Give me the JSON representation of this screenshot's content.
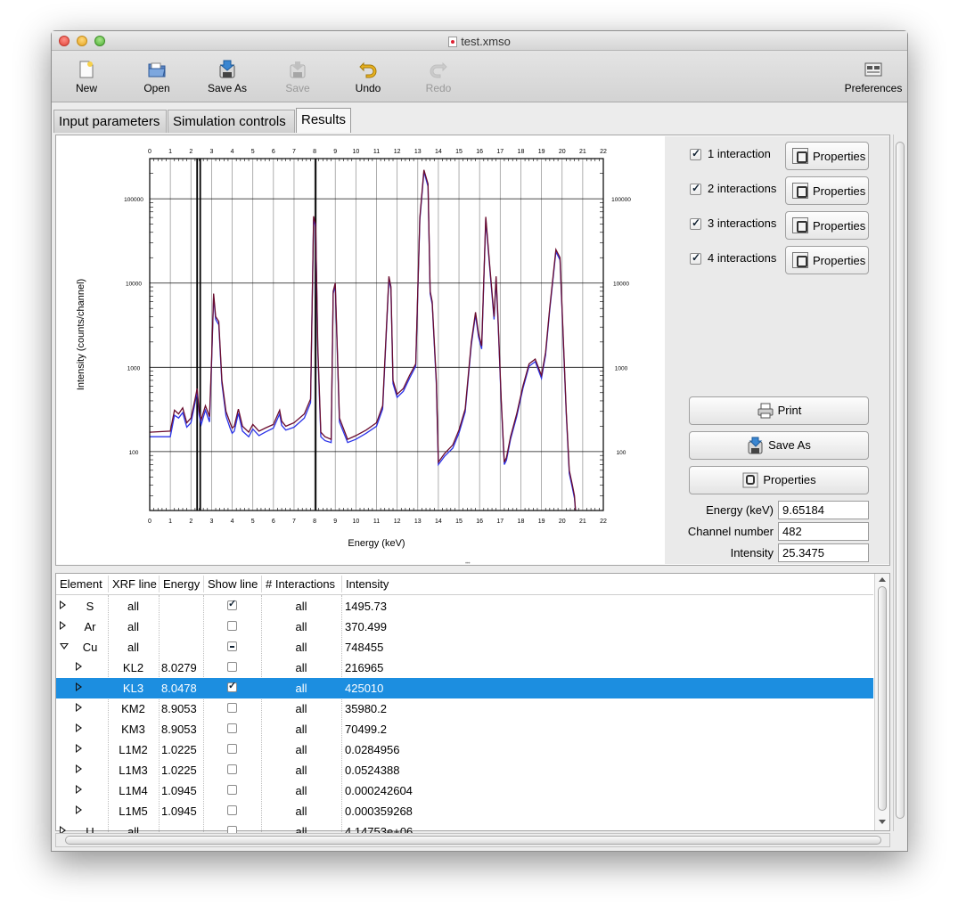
{
  "window": {
    "title": "test.xmso"
  },
  "toolbar": {
    "new": "New",
    "open": "Open",
    "save_as": "Save As",
    "save": "Save",
    "undo": "Undo",
    "redo": "Redo",
    "preferences": "Preferences"
  },
  "tabs": [
    "Input parameters",
    "Simulation controls",
    "Results"
  ],
  "chart_data": {
    "type": "line",
    "xlabel": "Energy (keV)",
    "ylabel": "Intensity (counts/channel)",
    "xlim": [
      0,
      22
    ],
    "ylim": [
      20,
      300000
    ],
    "yscale": "log",
    "x_ticks": [
      0,
      1,
      2,
      3,
      4,
      5,
      6,
      7,
      8,
      9,
      10,
      11,
      12,
      13,
      14,
      15,
      16,
      17,
      18,
      19,
      20,
      21,
      22
    ],
    "y_ticks": [
      100,
      1000,
      10000,
      100000
    ],
    "grid": true,
    "series": [
      {
        "color": "#6a0c2e",
        "x": [
          0,
          1,
          1.2,
          1.4,
          1.6,
          1.8,
          2.0,
          2.2,
          2.3,
          2.4,
          2.5,
          2.7,
          2.9,
          3.0,
          3.1,
          3.2,
          3.35,
          3.5,
          3.7,
          3.9,
          4.0,
          4.1,
          4.3,
          4.5,
          4.8,
          5.0,
          5.3,
          5.6,
          6.0,
          6.3,
          6.4,
          6.6,
          7.0,
          7.5,
          7.8,
          7.95,
          8.05,
          8.15,
          8.3,
          8.5,
          8.8,
          8.9,
          9.0,
          9.2,
          9.6,
          10.0,
          10.5,
          11.0,
          11.3,
          11.6,
          11.7,
          11.8,
          12.0,
          12.3,
          12.6,
          12.9,
          13.1,
          13.3,
          13.5,
          13.6,
          13.7,
          13.9,
          14.0,
          14.3,
          14.7,
          15.0,
          15.3,
          15.6,
          15.8,
          15.95,
          16.1,
          16.3,
          16.5,
          16.7,
          16.8,
          16.9,
          17.05,
          17.2,
          17.3,
          17.5,
          17.8,
          18.1,
          18.4,
          18.7,
          19.0,
          19.2,
          19.4,
          19.7,
          19.9,
          20.05,
          20.2,
          20.35,
          20.5,
          20.6,
          20.65
        ],
        "y": [
          170,
          175,
          310,
          280,
          330,
          220,
          250,
          420,
          560,
          300,
          240,
          350,
          260,
          1200,
          7500,
          4000,
          3500,
          700,
          300,
          220,
          190,
          200,
          320,
          200,
          170,
          210,
          175,
          190,
          210,
          310,
          230,
          200,
          220,
          280,
          420,
          62000,
          50000,
          1800,
          170,
          150,
          140,
          8000,
          10000,
          250,
          140,
          155,
          180,
          220,
          350,
          12000,
          9000,
          700,
          480,
          560,
          800,
          1100,
          60000,
          220000,
          150000,
          8000,
          6000,
          700,
          75,
          95,
          120,
          180,
          320,
          2000,
          4500,
          2500,
          1800,
          61000,
          15000,
          4000,
          12000,
          3500,
          400,
          75,
          85,
          150,
          280,
          600,
          1100,
          1250,
          800,
          1500,
          5000,
          25000,
          20000,
          2500,
          300,
          60,
          40,
          30,
          20
        ]
      },
      {
        "color": "#2b33e8",
        "x": [
          0,
          1,
          1.2,
          1.4,
          1.6,
          1.8,
          2.0,
          2.2,
          2.3,
          2.4,
          2.5,
          2.7,
          2.9,
          3.0,
          3.1,
          3.2,
          3.35,
          3.5,
          3.7,
          3.9,
          4.0,
          4.1,
          4.3,
          4.5,
          4.8,
          5.0,
          5.3,
          5.6,
          6.0,
          6.3,
          6.4,
          6.6,
          7.0,
          7.5,
          7.8,
          7.95,
          8.05,
          8.15,
          8.3,
          8.5,
          8.8,
          8.9,
          9.0,
          9.2,
          9.6,
          10.0,
          10.5,
          11.0,
          11.3,
          11.6,
          11.7,
          11.8,
          12.0,
          12.3,
          12.6,
          12.9,
          13.1,
          13.3,
          13.5,
          13.6,
          13.7,
          13.9,
          14.0,
          14.3,
          14.7,
          15.0,
          15.3,
          15.6,
          15.8,
          15.95,
          16.1,
          16.3,
          16.5,
          16.7,
          16.8,
          16.9,
          17.05,
          17.2,
          17.3,
          17.5,
          17.8,
          18.1,
          18.4,
          18.7,
          19.0,
          19.2,
          19.4,
          19.7,
          19.9,
          20.05,
          20.2,
          20.35,
          20.5,
          20.6,
          20.65
        ],
        "y": [
          150,
          150,
          270,
          250,
          290,
          195,
          220,
          380,
          520,
          270,
          210,
          310,
          225,
          1100,
          7000,
          3700,
          3200,
          640,
          265,
          190,
          165,
          175,
          285,
          175,
          150,
          185,
          155,
          170,
          190,
          280,
          205,
          180,
          195,
          250,
          380,
          58000,
          46000,
          1600,
          150,
          135,
          128,
          7500,
          9400,
          225,
          128,
          140,
          165,
          200,
          320,
          11300,
          8400,
          640,
          440,
          520,
          740,
          1030,
          56000,
          210000,
          140000,
          7500,
          5600,
          640,
          70,
          88,
          110,
          165,
          295,
          1850,
          4200,
          2300,
          1650,
          57000,
          14000,
          3700,
          11200,
          3200,
          370,
          70,
          79,
          140,
          260,
          560,
          1030,
          1170,
          740,
          1400,
          4700,
          23500,
          18800,
          2300,
          280,
          55,
          37,
          28,
          19
        ]
      }
    ]
  },
  "side": {
    "interactions": [
      {
        "label": "1 interaction",
        "checked": true
      },
      {
        "label": "2 interactions",
        "checked": true
      },
      {
        "label": "3 interactions",
        "checked": true
      },
      {
        "label": "4 interactions",
        "checked": true
      }
    ],
    "properties_label": "Properties",
    "print_label": "Print",
    "save_as_label": "Save As",
    "properties_wide_label": "Properties",
    "energy_label": "Energy (keV)",
    "energy_value": "9.65184",
    "channel_label": "Channel number",
    "channel_value": "482",
    "intensity_label": "Intensity",
    "intensity_value": "25.3475"
  },
  "table": {
    "headers": [
      "Element",
      "XRF line",
      "Energy",
      "Show line",
      "# Interactions",
      "Intensity"
    ],
    "rows": [
      {
        "element": "S",
        "line": "all",
        "energy": "",
        "show": "checked",
        "interactions": "all",
        "intensity": "1495.73",
        "level": 0,
        "open": false
      },
      {
        "element": "Ar",
        "line": "all",
        "energy": "",
        "show": "unchecked",
        "interactions": "all",
        "intensity": "370.499",
        "level": 0,
        "open": false
      },
      {
        "element": "Cu",
        "line": "all",
        "energy": "",
        "show": "mixed",
        "interactions": "all",
        "intensity": "748455",
        "level": 0,
        "open": true
      },
      {
        "element": "",
        "line": "KL2",
        "energy": "8.0279",
        "show": "unchecked",
        "interactions": "all",
        "intensity": "216965",
        "level": 1,
        "open": false
      },
      {
        "element": "",
        "line": "KL3",
        "energy": "8.0478",
        "show": "checked",
        "interactions": "all",
        "intensity": "425010",
        "level": 1,
        "open": false,
        "selected": true
      },
      {
        "element": "",
        "line": "KM2",
        "energy": "8.9053",
        "show": "unchecked",
        "interactions": "all",
        "intensity": "35980.2",
        "level": 1,
        "open": false
      },
      {
        "element": "",
        "line": "KM3",
        "energy": "8.9053",
        "show": "unchecked",
        "interactions": "all",
        "intensity": "70499.2",
        "level": 1,
        "open": false
      },
      {
        "element": "",
        "line": "L1M2",
        "energy": "1.0225",
        "show": "unchecked",
        "interactions": "all",
        "intensity": "0.0284956",
        "level": 1,
        "open": false
      },
      {
        "element": "",
        "line": "L1M3",
        "energy": "1.0225",
        "show": "unchecked",
        "interactions": "all",
        "intensity": "0.0524388",
        "level": 1,
        "open": false
      },
      {
        "element": "",
        "line": "L1M4",
        "energy": "1.0945",
        "show": "unchecked",
        "interactions": "all",
        "intensity": "0.000242604",
        "level": 1,
        "open": false
      },
      {
        "element": "",
        "line": "L1M5",
        "energy": "1.0945",
        "show": "unchecked",
        "interactions": "all",
        "intensity": "0.000359268",
        "level": 1,
        "open": false
      },
      {
        "element": "U",
        "line": "all",
        "energy": "",
        "show": "unchecked",
        "interactions": "all",
        "intensity": "4.14753e+06",
        "level": 0,
        "open": false
      }
    ]
  }
}
